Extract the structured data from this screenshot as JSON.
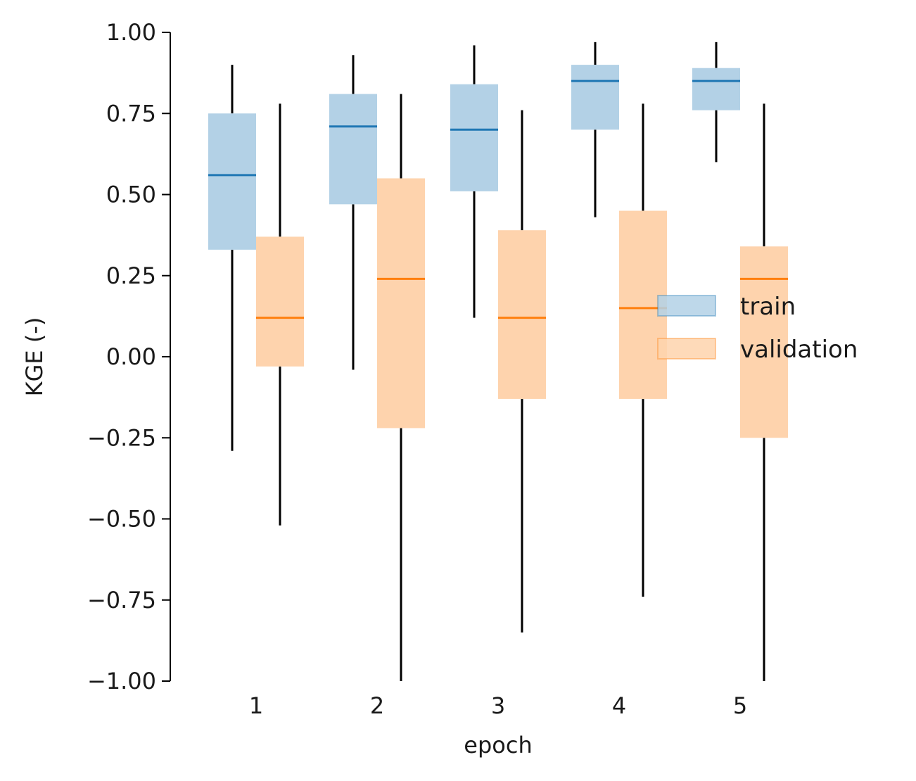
{
  "chart_data": {
    "type": "box",
    "xlabel": "epoch",
    "ylabel": "KGE (-)",
    "ylim": [
      -1.0,
      1.0
    ],
    "yticks": [
      -1.0,
      -0.75,
      -0.5,
      -0.25,
      0.0,
      0.25,
      0.5,
      0.75,
      1.0
    ],
    "ytick_labels": [
      "−1.00",
      "−0.75",
      "−0.50",
      "−0.25",
      "0.00",
      "0.25",
      "0.50",
      "0.75",
      "1.00"
    ],
    "categories": [
      "1",
      "2",
      "3",
      "4",
      "5"
    ],
    "legend_position": "center-right",
    "grid": false,
    "series": [
      {
        "name": "train",
        "color": "#1f77b4",
        "fill": "#b3d1e6",
        "boxes": [
          {
            "whisker_low": -0.29,
            "q1": 0.33,
            "median": 0.56,
            "q3": 0.75,
            "whisker_high": 0.9
          },
          {
            "whisker_low": -0.04,
            "q1": 0.47,
            "median": 0.71,
            "q3": 0.81,
            "whisker_high": 0.93
          },
          {
            "whisker_low": 0.12,
            "q1": 0.51,
            "median": 0.7,
            "q3": 0.84,
            "whisker_high": 0.96
          },
          {
            "whisker_low": 0.43,
            "q1": 0.7,
            "median": 0.85,
            "q3": 0.9,
            "whisker_high": 0.97
          },
          {
            "whisker_low": 0.6,
            "q1": 0.76,
            "median": 0.85,
            "q3": 0.89,
            "whisker_high": 0.97
          }
        ]
      },
      {
        "name": "validation",
        "color": "#ff7f0e",
        "fill": "#fed3ad",
        "boxes": [
          {
            "whisker_low": -0.52,
            "q1": -0.03,
            "median": 0.12,
            "q3": 0.37,
            "whisker_high": 0.78
          },
          {
            "whisker_low": -1.0,
            "q1": -0.22,
            "median": 0.24,
            "q3": 0.55,
            "whisker_high": 0.81
          },
          {
            "whisker_low": -0.85,
            "q1": -0.13,
            "median": 0.12,
            "q3": 0.39,
            "whisker_high": 0.76
          },
          {
            "whisker_low": -0.74,
            "q1": -0.13,
            "median": 0.15,
            "q3": 0.45,
            "whisker_high": 0.78
          },
          {
            "whisker_low": -1.0,
            "q1": -0.25,
            "median": 0.24,
            "q3": 0.34,
            "whisker_high": 0.78
          }
        ]
      }
    ]
  }
}
